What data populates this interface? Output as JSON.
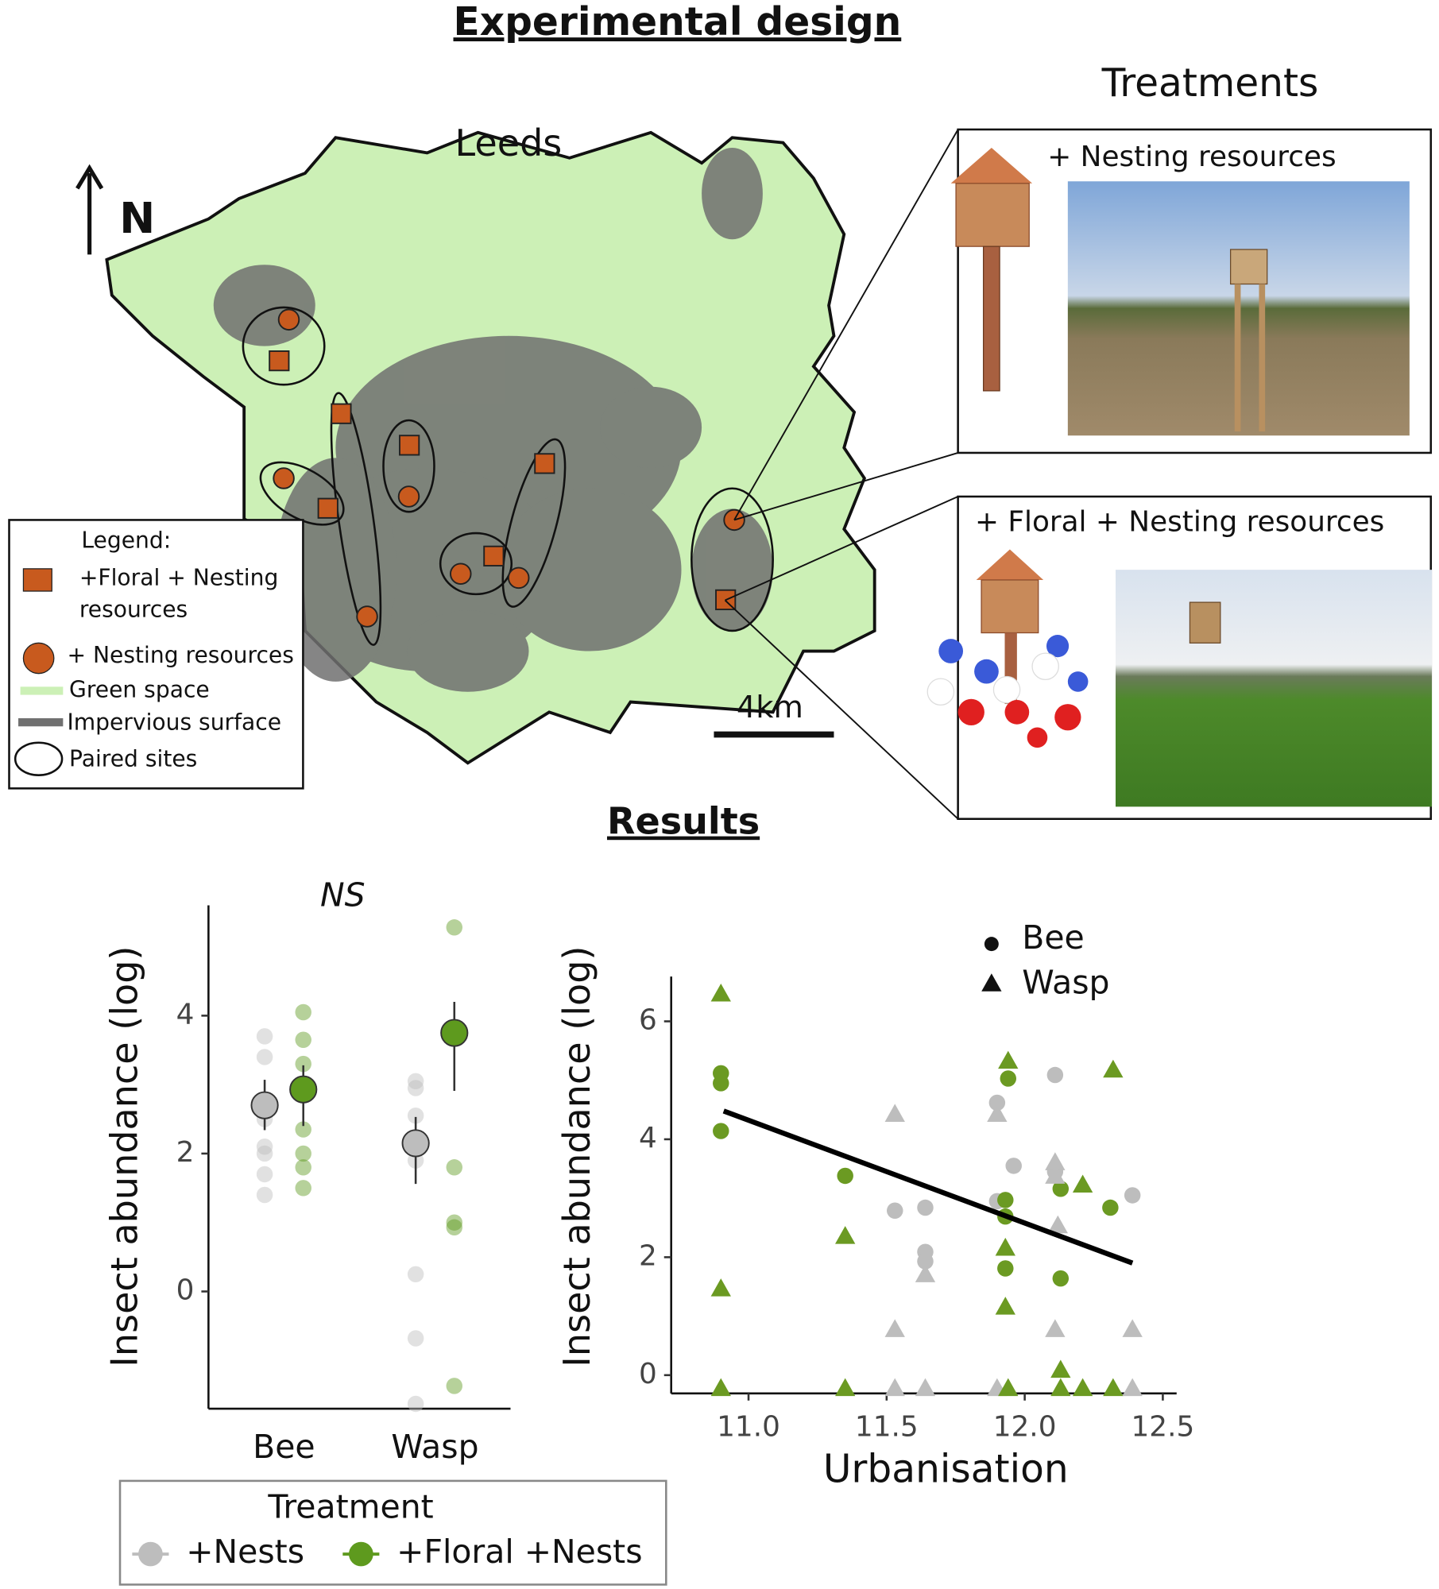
{
  "header": {
    "title": "Experimental design",
    "results_title": "Results"
  },
  "map": {
    "title": "Leeds",
    "north": "N",
    "scale": "4km",
    "legend": {
      "title": "Legend:",
      "floral_nesting": [
        "+Floral + Nesting",
        "resources"
      ],
      "nesting": "+ Nesting resources",
      "green": "Green space",
      "impervious": "Impervious surface",
      "paired": "Paired sites"
    }
  },
  "treatments": {
    "title": "Treatments",
    "nesting": "+  Nesting resources",
    "floral_nesting": "+ Floral + Nesting resources"
  },
  "chart_data": [
    {
      "type": "strip",
      "annotation": "NS",
      "y_label": "Insect abundance (log)",
      "legend_title": "Treatment",
      "categories": [
        "Bee",
        "Wasp"
      ],
      "ylim": [
        -1.7,
        5.6
      ],
      "yticks": [
        0,
        2,
        4
      ],
      "series": [
        {
          "name": "+Nests",
          "color": "#bdbdbd",
          "values": [
            2.7,
            2.15
          ],
          "lower": [
            2.34,
            1.56
          ],
          "upper": [
            3.07,
            2.53
          ],
          "points": [
            [
              3.7,
              3.4,
              2.5,
              2.1,
              2.0,
              1.7,
              1.4
            ],
            [
              3.05,
              2.95,
              2.55,
              1.9,
              0.25,
              -0.68,
              -1.63
            ]
          ]
        },
        {
          "name": "+Floral +Nests",
          "color": "#5e9a1e",
          "values": [
            2.93,
            3.75
          ],
          "lower": [
            2.4,
            2.91
          ],
          "upper": [
            3.28,
            4.2
          ],
          "points": [
            [
              4.05,
              3.65,
              3.3,
              2.35,
              2.0,
              1.8,
              1.5
            ],
            [
              5.28,
              1.8,
              1.0,
              0.93,
              -1.37
            ]
          ]
        }
      ]
    },
    {
      "type": "scatter",
      "x_label": "Urbanisation",
      "y_label": "Insect abundance (log)",
      "xlim": [
        10.72,
        12.55
      ],
      "ylim": [
        -0.31,
        6.76
      ],
      "xticks": [
        {
          "value": 11,
          "label": "11.0"
        },
        {
          "value": 11.5,
          "label": "11.5"
        },
        {
          "value": 12,
          "label": "12.0"
        },
        {
          "value": 12.5,
          "label": "12.5"
        }
      ],
      "yticks": [
        0,
        2,
        4,
        6
      ],
      "series": [
        {
          "name": "Bee",
          "marker": "circle",
          "color": "#bdbdbd",
          "x": [
            11.53,
            11.64,
            11.64,
            11.64,
            11.9,
            11.96,
            12.11,
            12.11,
            12.39,
            11.9
          ],
          "values": [
            2.79,
            2.84,
            2.09,
            1.93,
            4.62,
            3.55,
            5.09,
            3.45,
            3.05,
            2.95
          ]
        },
        {
          "name": "Bee",
          "marker": "circle",
          "color": "#6b9a22",
          "x": [
            10.9,
            10.9,
            10.9,
            11.35,
            11.93,
            11.93,
            11.93,
            11.94,
            12.13,
            12.13,
            12.31
          ],
          "values": [
            5.12,
            4.95,
            4.14,
            3.38,
            2.97,
            2.69,
            1.81,
            5.03,
            3.16,
            1.64,
            2.84
          ]
        },
        {
          "name": "Wasp",
          "marker": "triangle",
          "color": "#bdbdbd",
          "x": [
            11.53,
            11.53,
            11.64,
            11.9,
            12.11,
            12.11,
            12.12,
            12.11,
            12.39,
            11.53,
            11.64,
            11.9,
            12.39
          ],
          "values": [
            4.41,
            0.76,
            1.69,
            4.41,
            3.59,
            3.36,
            2.52,
            0.76,
            0.76,
            -0.24,
            -0.24,
            -0.24,
            -0.24
          ]
        },
        {
          "name": "Wasp",
          "marker": "triangle",
          "color": "#6b9a22",
          "x": [
            10.9,
            10.9,
            10.9,
            11.35,
            11.35,
            11.94,
            11.93,
            11.93,
            11.94,
            12.13,
            12.21,
            12.32,
            12.13,
            12.21,
            12.32
          ],
          "values": [
            6.45,
            1.45,
            -0.24,
            2.34,
            -0.24,
            5.31,
            2.14,
            1.14,
            -0.24,
            0.07,
            3.21,
            5.16,
            -0.24,
            -0.24,
            -0.24
          ]
        }
      ],
      "trend": {
        "color": "#000000",
        "x": [
          10.91,
          12.39
        ],
        "values": [
          4.48,
          1.9
        ]
      }
    }
  ]
}
